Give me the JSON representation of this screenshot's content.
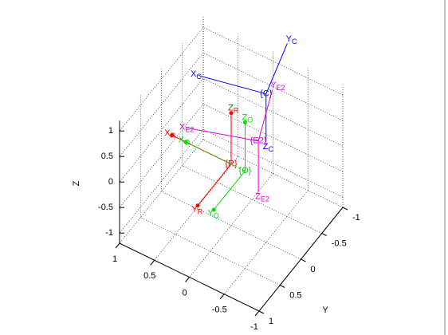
{
  "chart_data": {
    "type": "frames3d",
    "ylabel": "Y",
    "zlabel": "Z",
    "xlim": [
      -1,
      1
    ],
    "ylim": [
      -1,
      1
    ],
    "zlim": [
      -1.2,
      1.2
    ],
    "xticks": [
      -1,
      -0.5,
      0,
      0.5,
      1
    ],
    "yticks": [
      -1,
      -0.5,
      0,
      0.5,
      1
    ],
    "zticks": [
      -1,
      -0.5,
      0,
      0.5,
      1
    ],
    "grid": true,
    "frames": [
      {
        "label": "{R}",
        "color": "#ff0000",
        "arrows": true,
        "origin": [
          0,
          0,
          0
        ],
        "axes": [
          {
            "name": "X",
            "sub": "R",
            "end": [
              0.85,
              0,
              0
            ]
          },
          {
            "name": "Y",
            "sub": "R",
            "end": [
              0,
              0.8,
              0
            ]
          },
          {
            "name": "Z",
            "sub": "R",
            "end": [
              0,
              0,
              1
            ]
          }
        ]
      },
      {
        "label": "{O}",
        "color": "#00dd00",
        "arrows": true,
        "origin": [
          -0.2,
          0,
          0
        ],
        "axes": [
          {
            "name": "X",
            "sub": "O",
            "end": [
              0.65,
              0,
              0
            ],
            "dashed": true
          },
          {
            "name": "Y",
            "sub": "O",
            "end": [
              -0.2,
              0.75,
              0
            ]
          },
          {
            "name": "Z",
            "sub": "O",
            "end": [
              -0.2,
              0,
              0.95
            ]
          }
        ]
      },
      {
        "label": "{C}",
        "color": "#0000ff",
        "arrows": false,
        "origin": [
          -0.2,
          -0.5,
          1
        ],
        "axes": [
          {
            "name": "X",
            "sub": "C",
            "end": [
              0.65,
              -0.3,
              1
            ]
          },
          {
            "name": "Y",
            "sub": "C",
            "end": [
              0,
              -1.34,
              1
            ]
          },
          {
            "name": "Z",
            "sub": "C",
            "end": [
              -0.2,
              -0.5,
              0.06
            ]
          }
        ]
      },
      {
        "label": "{E2}",
        "color": "#dd00dd",
        "arrows": false,
        "origin": [
          -0.3,
          -0.15,
          0.5
        ],
        "axes": [
          {
            "name": "X",
            "sub": "E2",
            "end": [
              0.54,
              0.15,
              0.5
            ]
          },
          {
            "name": "Y",
            "sub": "E2",
            "end": [
              -0.02,
              -0.95,
              0.5
            ]
          },
          {
            "name": "Z",
            "sub": "E2",
            "end": [
              -0.3,
              -0.15,
              -0.5
            ]
          }
        ]
      }
    ]
  }
}
